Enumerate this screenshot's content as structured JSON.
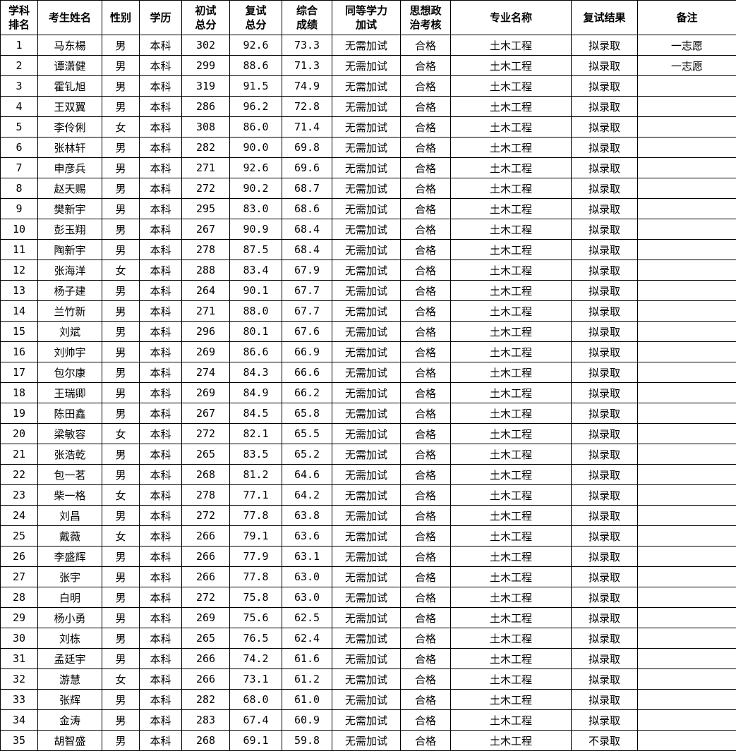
{
  "colors": {
    "background": "#ffffff",
    "border": "#000000",
    "text": "#000000"
  },
  "table": {
    "columns": [
      {
        "key": "rank",
        "label": "学科\n排名"
      },
      {
        "key": "name",
        "label": "考生姓名"
      },
      {
        "key": "gender",
        "label": "性别"
      },
      {
        "key": "education",
        "label": "学历"
      },
      {
        "key": "initial",
        "label": "初试\n总分"
      },
      {
        "key": "retest",
        "label": "复试\n总分"
      },
      {
        "key": "comprehensive",
        "label": "综合\n成绩"
      },
      {
        "key": "addtest",
        "label": "同等学力\n加试"
      },
      {
        "key": "political",
        "label": "思想政\n治考核"
      },
      {
        "key": "major",
        "label": "专业名称"
      },
      {
        "key": "result",
        "label": "复试结果"
      },
      {
        "key": "remark",
        "label": "备注"
      }
    ],
    "rows": [
      [
        "1",
        "马东楊",
        "男",
        "本科",
        "302",
        "92.6",
        "73.3",
        "无需加试",
        "合格",
        "土木工程",
        "拟录取",
        "一志愿"
      ],
      [
        "2",
        "谭潇健",
        "男",
        "本科",
        "299",
        "88.6",
        "71.3",
        "无需加试",
        "合格",
        "土木工程",
        "拟录取",
        "一志愿"
      ],
      [
        "3",
        "霍钆旭",
        "男",
        "本科",
        "319",
        "91.5",
        "74.9",
        "无需加试",
        "合格",
        "土木工程",
        "拟录取",
        ""
      ],
      [
        "4",
        "王双翼",
        "男",
        "本科",
        "286",
        "96.2",
        "72.8",
        "无需加试",
        "合格",
        "土木工程",
        "拟录取",
        ""
      ],
      [
        "5",
        "李伶俐",
        "女",
        "本科",
        "308",
        "86.0",
        "71.4",
        "无需加试",
        "合格",
        "土木工程",
        "拟录取",
        ""
      ],
      [
        "6",
        "张林轩",
        "男",
        "本科",
        "282",
        "90.0",
        "69.8",
        "无需加试",
        "合格",
        "土木工程",
        "拟录取",
        ""
      ],
      [
        "7",
        "申彦兵",
        "男",
        "本科",
        "271",
        "92.6",
        "69.6",
        "无需加试",
        "合格",
        "土木工程",
        "拟录取",
        ""
      ],
      [
        "8",
        "赵天赐",
        "男",
        "本科",
        "272",
        "90.2",
        "68.7",
        "无需加试",
        "合格",
        "土木工程",
        "拟录取",
        ""
      ],
      [
        "9",
        "樊新宇",
        "男",
        "本科",
        "295",
        "83.0",
        "68.6",
        "无需加试",
        "合格",
        "土木工程",
        "拟录取",
        ""
      ],
      [
        "10",
        "彭玉翔",
        "男",
        "本科",
        "267",
        "90.9",
        "68.4",
        "无需加试",
        "合格",
        "土木工程",
        "拟录取",
        ""
      ],
      [
        "11",
        "陶新宇",
        "男",
        "本科",
        "278",
        "87.5",
        "68.4",
        "无需加试",
        "合格",
        "土木工程",
        "拟录取",
        ""
      ],
      [
        "12",
        "张海洋",
        "女",
        "本科",
        "288",
        "83.4",
        "67.9",
        "无需加试",
        "合格",
        "土木工程",
        "拟录取",
        ""
      ],
      [
        "13",
        "杨子建",
        "男",
        "本科",
        "264",
        "90.1",
        "67.7",
        "无需加试",
        "合格",
        "土木工程",
        "拟录取",
        ""
      ],
      [
        "14",
        "兰竹新",
        "男",
        "本科",
        "271",
        "88.0",
        "67.7",
        "无需加试",
        "合格",
        "土木工程",
        "拟录取",
        ""
      ],
      [
        "15",
        "刘斌",
        "男",
        "本科",
        "296",
        "80.1",
        "67.6",
        "无需加试",
        "合格",
        "土木工程",
        "拟录取",
        ""
      ],
      [
        "16",
        "刘帅宇",
        "男",
        "本科",
        "269",
        "86.6",
        "66.9",
        "无需加试",
        "合格",
        "土木工程",
        "拟录取",
        ""
      ],
      [
        "17",
        "包尔康",
        "男",
        "本科",
        "274",
        "84.3",
        "66.6",
        "无需加试",
        "合格",
        "土木工程",
        "拟录取",
        ""
      ],
      [
        "18",
        "王瑞卿",
        "男",
        "本科",
        "269",
        "84.9",
        "66.2",
        "无需加试",
        "合格",
        "土木工程",
        "拟录取",
        ""
      ],
      [
        "19",
        "陈田鑫",
        "男",
        "本科",
        "267",
        "84.5",
        "65.8",
        "无需加试",
        "合格",
        "土木工程",
        "拟录取",
        ""
      ],
      [
        "20",
        "梁敏容",
        "女",
        "本科",
        "272",
        "82.1",
        "65.5",
        "无需加试",
        "合格",
        "土木工程",
        "拟录取",
        ""
      ],
      [
        "21",
        "张浩乾",
        "男",
        "本科",
        "265",
        "83.5",
        "65.2",
        "无需加试",
        "合格",
        "土木工程",
        "拟录取",
        ""
      ],
      [
        "22",
        "包一茗",
        "男",
        "本科",
        "268",
        "81.2",
        "64.6",
        "无需加试",
        "合格",
        "土木工程",
        "拟录取",
        ""
      ],
      [
        "23",
        "柴一格",
        "女",
        "本科",
        "278",
        "77.1",
        "64.2",
        "无需加试",
        "合格",
        "土木工程",
        "拟录取",
        ""
      ],
      [
        "24",
        "刘昌",
        "男",
        "本科",
        "272",
        "77.8",
        "63.8",
        "无需加试",
        "合格",
        "土木工程",
        "拟录取",
        ""
      ],
      [
        "25",
        "戴薇",
        "女",
        "本科",
        "266",
        "79.1",
        "63.6",
        "无需加试",
        "合格",
        "土木工程",
        "拟录取",
        ""
      ],
      [
        "26",
        "李盛辉",
        "男",
        "本科",
        "266",
        "77.9",
        "63.1",
        "无需加试",
        "合格",
        "土木工程",
        "拟录取",
        ""
      ],
      [
        "27",
        "张宇",
        "男",
        "本科",
        "266",
        "77.8",
        "63.0",
        "无需加试",
        "合格",
        "土木工程",
        "拟录取",
        ""
      ],
      [
        "28",
        "白明",
        "男",
        "本科",
        "272",
        "75.8",
        "63.0",
        "无需加试",
        "合格",
        "土木工程",
        "拟录取",
        ""
      ],
      [
        "29",
        "杨小勇",
        "男",
        "本科",
        "269",
        "75.6",
        "62.5",
        "无需加试",
        "合格",
        "土木工程",
        "拟录取",
        ""
      ],
      [
        "30",
        "刘栋",
        "男",
        "本科",
        "265",
        "76.5",
        "62.4",
        "无需加试",
        "合格",
        "土木工程",
        "拟录取",
        ""
      ],
      [
        "31",
        "孟廷宇",
        "男",
        "本科",
        "266",
        "74.2",
        "61.6",
        "无需加试",
        "合格",
        "土木工程",
        "拟录取",
        ""
      ],
      [
        "32",
        "游慧",
        "女",
        "本科",
        "266",
        "73.1",
        "61.2",
        "无需加试",
        "合格",
        "土木工程",
        "拟录取",
        ""
      ],
      [
        "33",
        "张辉",
        "男",
        "本科",
        "282",
        "68.0",
        "61.0",
        "无需加试",
        "合格",
        "土木工程",
        "拟录取",
        ""
      ],
      [
        "34",
        "金涛",
        "男",
        "本科",
        "283",
        "67.4",
        "60.9",
        "无需加试",
        "合格",
        "土木工程",
        "拟录取",
        ""
      ],
      [
        "35",
        "胡智盛",
        "男",
        "本科",
        "268",
        "69.1",
        "59.8",
        "无需加试",
        "合格",
        "土木工程",
        "不录取",
        ""
      ]
    ]
  }
}
